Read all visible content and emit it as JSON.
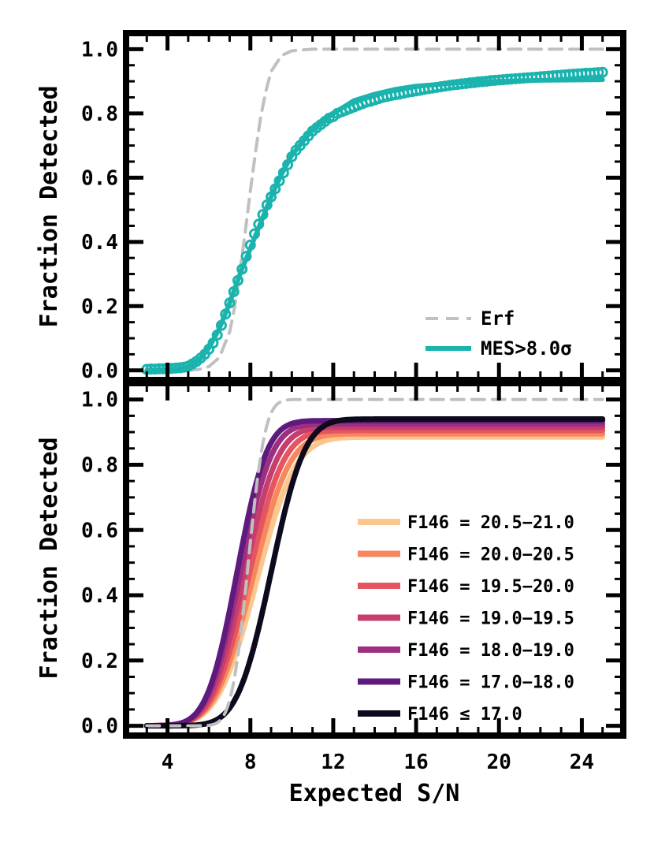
{
  "chart_data": [
    {
      "type": "line",
      "panel": "top",
      "ylabel": "Fraction Detected",
      "xlim": [
        2,
        26
      ],
      "ylim": [
        -0.03,
        1.05
      ],
      "yticks": [
        0.0,
        0.2,
        0.4,
        0.6,
        0.8,
        1.0
      ],
      "ytick_labels": [
        "0.0",
        "0.2",
        "0.4",
        "0.6",
        "0.8",
        "1.0"
      ],
      "legend_position": "lower-right",
      "series": [
        {
          "name": "Erf",
          "style": "dashed",
          "color": "#c0c0c0",
          "x": [
            3,
            4,
            5,
            5.5,
            6,
            6.5,
            7,
            7.25,
            7.5,
            7.75,
            8,
            8.25,
            8.5,
            8.75,
            9,
            9.5,
            10,
            11,
            14,
            18,
            22,
            25
          ],
          "y": [
            0.0,
            0.0,
            0.0,
            0.003,
            0.012,
            0.04,
            0.12,
            0.2,
            0.31,
            0.43,
            0.56,
            0.68,
            0.79,
            0.87,
            0.93,
            0.98,
            0.995,
            1.0,
            1.0,
            1.0,
            1.0,
            1.0
          ]
        },
        {
          "name": "MES>8.0σ",
          "style": "solid",
          "color": "#1ab3ad",
          "x": [
            3,
            4,
            5,
            5.5,
            6,
            6.5,
            7,
            7.5,
            8,
            8.5,
            9,
            9.5,
            10,
            10.5,
            11,
            12,
            13,
            14,
            15,
            16,
            18,
            20,
            22,
            25
          ],
          "y": [
            0.0,
            0.002,
            0.01,
            0.03,
            0.07,
            0.13,
            0.21,
            0.3,
            0.38,
            0.46,
            0.54,
            0.61,
            0.67,
            0.71,
            0.75,
            0.8,
            0.84,
            0.86,
            0.875,
            0.885,
            0.895,
            0.9,
            0.903,
            0.905
          ]
        },
        {
          "name": "data points",
          "style": "markers",
          "color": "#1ab3ad",
          "x": [
            3,
            3.2,
            3.4,
            3.6,
            3.8,
            4.0,
            4.2,
            4.4,
            4.6,
            4.8,
            5.0,
            5.2,
            5.4,
            5.6,
            5.8,
            6.0,
            6.2,
            6.4,
            6.6,
            6.8,
            7.0,
            7.2,
            7.4,
            7.6,
            7.8,
            8.0,
            8.2,
            8.4,
            8.6,
            8.8,
            9.0,
            9.2,
            9.4,
            9.6,
            9.8,
            10.0,
            10.2,
            10.4,
            10.6,
            10.8,
            11.0,
            11.2,
            11.4,
            11.6,
            11.8,
            12.0,
            12.2,
            12.4,
            12.6,
            12.8,
            13.0,
            13.2,
            13.4,
            13.6,
            13.8,
            14.0,
            14.2,
            14.4,
            14.6,
            14.8,
            15.0,
            15.2,
            15.4,
            15.6,
            15.8,
            16.0,
            16.2,
            16.4,
            16.6,
            16.8,
            17.0,
            17.2,
            17.4,
            17.6,
            17.8,
            18.0,
            18.2,
            18.4,
            18.6,
            18.8,
            19.0,
            19.2,
            19.4,
            19.6,
            19.8,
            20.0,
            20.2,
            20.4,
            20.6,
            20.8,
            21.0,
            21.2,
            21.4,
            21.6,
            21.8,
            22.0,
            22.2,
            22.4,
            22.6,
            22.8,
            23.0,
            23.2,
            23.4,
            23.6,
            23.8,
            24.0,
            24.2,
            24.4,
            24.6,
            24.8,
            25.0
          ],
          "y": [
            0.003,
            0.004,
            0.004,
            0.005,
            0.005,
            0.006,
            0.006,
            0.007,
            0.008,
            0.01,
            0.013,
            0.02,
            0.028,
            0.038,
            0.05,
            0.066,
            0.085,
            0.11,
            0.14,
            0.175,
            0.21,
            0.245,
            0.28,
            0.315,
            0.355,
            0.39,
            0.425,
            0.455,
            0.485,
            0.515,
            0.54,
            0.565,
            0.59,
            0.615,
            0.64,
            0.665,
            0.685,
            0.7,
            0.715,
            0.73,
            0.745,
            0.755,
            0.765,
            0.775,
            0.785,
            0.79,
            0.8,
            0.805,
            0.81,
            0.815,
            0.82,
            0.825,
            0.83,
            0.835,
            0.838,
            0.842,
            0.846,
            0.85,
            0.853,
            0.856,
            0.858,
            0.86,
            0.863,
            0.866,
            0.868,
            0.87,
            0.872,
            0.875,
            0.877,
            0.879,
            0.881,
            0.883,
            0.885,
            0.887,
            0.889,
            0.89,
            0.892,
            0.893,
            0.895,
            0.896,
            0.898,
            0.899,
            0.9,
            0.902,
            0.903,
            0.904,
            0.905,
            0.906,
            0.907,
            0.908,
            0.909,
            0.91,
            0.911,
            0.912,
            0.913,
            0.914,
            0.915,
            0.916,
            0.917,
            0.918,
            0.919,
            0.92,
            0.921,
            0.922,
            0.923,
            0.924,
            0.925,
            0.925,
            0.926,
            0.927,
            0.928
          ]
        }
      ]
    },
    {
      "type": "line",
      "panel": "bottom",
      "xlabel": "Expected S/N",
      "ylabel": "Fraction Detected",
      "xlim": [
        2,
        26
      ],
      "ylim": [
        -0.03,
        1.05
      ],
      "xticks": [
        4,
        8,
        12,
        16,
        20,
        24
      ],
      "xtick_labels": [
        "4",
        "8",
        "12",
        "16",
        "20",
        "24"
      ],
      "yticks": [
        0.0,
        0.2,
        0.4,
        0.6,
        0.8,
        1.0
      ],
      "ytick_labels": [
        "0.0",
        "0.2",
        "0.4",
        "0.6",
        "0.8",
        "1.0"
      ],
      "legend_position": "center-right",
      "series": [
        {
          "name": "F146 = 20.5−21.0",
          "color": "#fcc78f",
          "center": 8.3,
          "scale": 2.1,
          "plateau": 0.885
        },
        {
          "name": "F146 = 20.0−20.5",
          "color": "#f7875d",
          "center": 8.1,
          "scale": 2.0,
          "plateau": 0.895
        },
        {
          "name": "F146 = 19.5−20.0",
          "color": "#e5555f",
          "center": 7.9,
          "scale": 1.9,
          "plateau": 0.905
        },
        {
          "name": "F146 = 19.0−19.5",
          "color": "#c63e6e",
          "center": 7.7,
          "scale": 1.8,
          "plateau": 0.915
        },
        {
          "name": "F146 = 18.0−19.0",
          "color": "#9e2f80",
          "center": 7.5,
          "scale": 1.7,
          "plateau": 0.925
        },
        {
          "name": "F146 = 17.0−18.0",
          "color": "#5e1a7c",
          "center": 7.35,
          "scale": 1.6,
          "plateau": 0.935
        },
        {
          "name": "F146 ≤ 17.0",
          "color": "#0c0a1c",
          "center": 9.0,
          "scale": 1.8,
          "plateau": 0.94
        },
        {
          "name": "Erf",
          "style": "dashed",
          "color": "#c0c0c0",
          "center": 7.9,
          "scale": 0.9,
          "plateau": 1.0
        }
      ]
    }
  ],
  "legend_top": [
    {
      "label": "Erf",
      "style": "dashed",
      "color": "#c0c0c0"
    },
    {
      "label": "MES>8.0σ",
      "style": "solid",
      "color": "#1ab3ad"
    }
  ],
  "legend_bottom": [
    {
      "label": "F146 = 20.5−21.0",
      "color": "#fcc78f"
    },
    {
      "label": "F146 = 20.0−20.5",
      "color": "#f7875d"
    },
    {
      "label": "F146 = 19.5−20.0",
      "color": "#e5555f"
    },
    {
      "label": "F146 = 19.0−19.5",
      "color": "#c63e6e"
    },
    {
      "label": "F146 = 18.0−19.0",
      "color": "#9e2f80"
    },
    {
      "label": "F146 = 17.0−18.0",
      "color": "#5e1a7c"
    },
    {
      "label": "F146 ≤ 17.0",
      "color": "#0c0a1c"
    }
  ]
}
